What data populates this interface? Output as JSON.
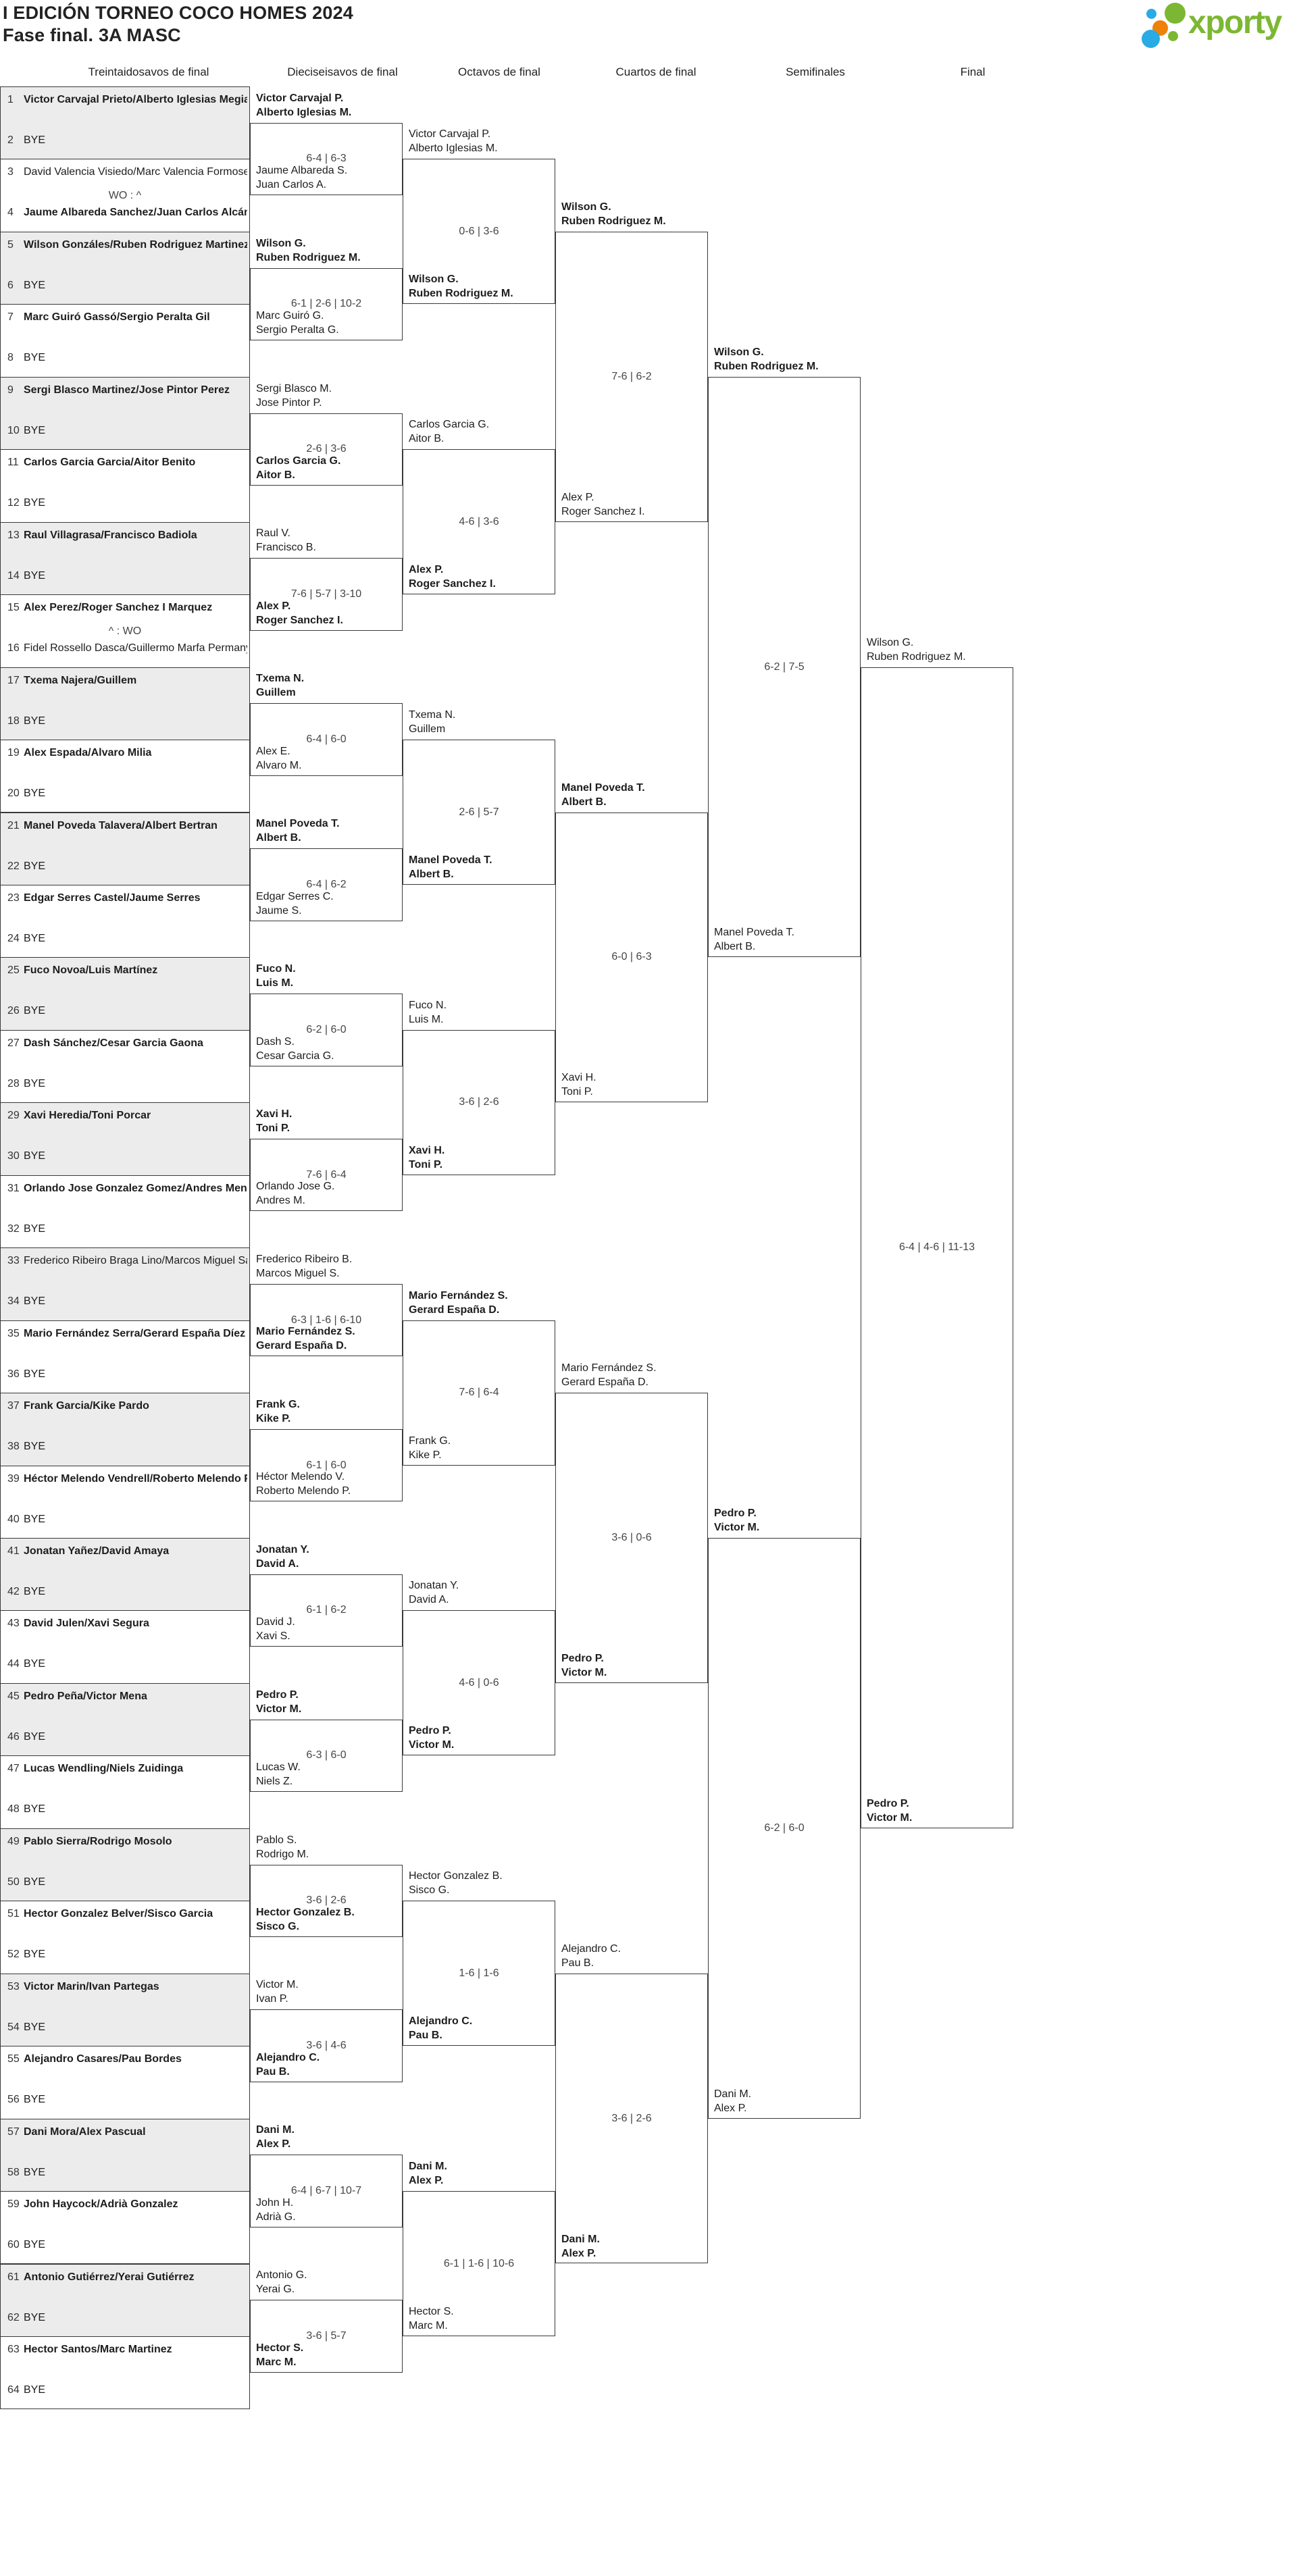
{
  "header": {
    "title": "I EDICIÓN TORNEO COCO HOMES 2024",
    "subtitle": "Fase final. 3A MASC"
  },
  "logo": {
    "brand": "xporty",
    "green": "#7cb733",
    "blue": "#2aabe4",
    "orange": "#ef8108"
  },
  "rounds": [
    {
      "label": "Treintaidosavos de final"
    },
    {
      "label": "Dieciseisavos de final"
    },
    {
      "label": "Octavos de final"
    },
    {
      "label": "Cuartos de final"
    },
    {
      "label": "Semifinales"
    },
    {
      "label": "Final"
    }
  ],
  "colors": {
    "shaded_match": "#ececec",
    "line": "#3a3a3a",
    "score_text": "#454545",
    "text": "#1d1d1d"
  },
  "bracket": {
    "round_of_64": [
      {
        "a_seed": 1,
        "a_name": "Victor Carvajal Prieto/Alberto Iglesias Megias",
        "a_bold": true,
        "b_seed": 2,
        "b_name": "BYE",
        "b_bold": false,
        "score": "",
        "shaded": true
      },
      {
        "a_seed": 3,
        "a_name": "David Valencia Visiedo/Marc Valencia Formoselle",
        "a_bold": false,
        "b_seed": 4,
        "b_name": "Jaume Albareda Sanchez/Juan Carlos Alcántara",
        "b_bold": true,
        "score": "WO : ^",
        "shaded": false
      },
      {
        "a_seed": 5,
        "a_name": "Wilson Gonzáles/Ruben Rodriguez Martinez",
        "a_bold": true,
        "b_seed": 6,
        "b_name": "BYE",
        "b_bold": false,
        "score": "",
        "shaded": true
      },
      {
        "a_seed": 7,
        "a_name": "Marc Guiró Gassó/Sergio Peralta Gil",
        "a_bold": true,
        "b_seed": 8,
        "b_name": "BYE",
        "b_bold": false,
        "score": "",
        "shaded": false
      },
      {
        "a_seed": 9,
        "a_name": "Sergi Blasco Martinez/Jose Pintor Perez",
        "a_bold": true,
        "b_seed": 10,
        "b_name": "BYE",
        "b_bold": false,
        "score": "",
        "shaded": true
      },
      {
        "a_seed": 11,
        "a_name": "Carlos Garcia Garcia/Aitor Benito",
        "a_bold": true,
        "b_seed": 12,
        "b_name": "BYE",
        "b_bold": false,
        "score": "",
        "shaded": false
      },
      {
        "a_seed": 13,
        "a_name": "Raul Villagrasa/Francisco Badiola",
        "a_bold": true,
        "b_seed": 14,
        "b_name": "BYE",
        "b_bold": false,
        "score": "",
        "shaded": true
      },
      {
        "a_seed": 15,
        "a_name": "Alex Perez/Roger Sanchez I Marquez",
        "a_bold": true,
        "b_seed": 16,
        "b_name": "Fidel Rossello Dasca/Guillermo Marfa Permanye",
        "b_bold": false,
        "score": "^ : WO",
        "shaded": false
      },
      {
        "a_seed": 17,
        "a_name": "Txema Najera/Guillem",
        "a_bold": true,
        "b_seed": 18,
        "b_name": "BYE",
        "b_bold": false,
        "score": "",
        "shaded": true
      },
      {
        "a_seed": 19,
        "a_name": "Alex Espada/Alvaro Milia",
        "a_bold": true,
        "b_seed": 20,
        "b_name": "BYE",
        "b_bold": false,
        "score": "",
        "shaded": false
      },
      {
        "a_seed": 21,
        "a_name": "Manel Poveda Talavera/Albert Bertran",
        "a_bold": true,
        "b_seed": 22,
        "b_name": "BYE",
        "b_bold": false,
        "score": "",
        "shaded": true
      },
      {
        "a_seed": 23,
        "a_name": "Edgar Serres Castel/Jaume Serres",
        "a_bold": true,
        "b_seed": 24,
        "b_name": "BYE",
        "b_bold": false,
        "score": "",
        "shaded": false
      },
      {
        "a_seed": 25,
        "a_name": "Fuco Novoa/Luis Martínez",
        "a_bold": true,
        "b_seed": 26,
        "b_name": "BYE",
        "b_bold": false,
        "score": "",
        "shaded": true
      },
      {
        "a_seed": 27,
        "a_name": "Dash Sánchez/Cesar Garcia Gaona",
        "a_bold": true,
        "b_seed": 28,
        "b_name": "BYE",
        "b_bold": false,
        "score": "",
        "shaded": false
      },
      {
        "a_seed": 29,
        "a_name": "Xavi Heredia/Toni Porcar",
        "a_bold": true,
        "b_seed": 30,
        "b_name": "BYE",
        "b_bold": false,
        "score": "",
        "shaded": true
      },
      {
        "a_seed": 31,
        "a_name": "Orlando Jose Gonzalez Gomez/Andres Mendoza",
        "a_bold": true,
        "b_seed": 32,
        "b_name": "BYE",
        "b_bold": false,
        "score": "",
        "shaded": false
      },
      {
        "a_seed": 33,
        "a_name": "Frederico Ribeiro Braga Lino/Marcos Miguel San",
        "a_bold": false,
        "b_seed": 34,
        "b_name": "BYE",
        "b_bold": false,
        "score": "",
        "shaded": true
      },
      {
        "a_seed": 35,
        "a_name": "Mario Fernández Serra/Gerard España Díez",
        "a_bold": true,
        "b_seed": 36,
        "b_name": "BYE",
        "b_bold": false,
        "score": "",
        "shaded": false
      },
      {
        "a_seed": 37,
        "a_name": "Frank Garcia/Kike Pardo",
        "a_bold": true,
        "b_seed": 38,
        "b_name": "BYE",
        "b_bold": false,
        "score": "",
        "shaded": true
      },
      {
        "a_seed": 39,
        "a_name": "Héctor Melendo Vendrell/Roberto Melendo Pala",
        "a_bold": true,
        "b_seed": 40,
        "b_name": "BYE",
        "b_bold": false,
        "score": "",
        "shaded": false
      },
      {
        "a_seed": 41,
        "a_name": "Jonatan Yañez/David Amaya",
        "a_bold": true,
        "b_seed": 42,
        "b_name": "BYE",
        "b_bold": false,
        "score": "",
        "shaded": true
      },
      {
        "a_seed": 43,
        "a_name": "David Julen/Xavi Segura",
        "a_bold": true,
        "b_seed": 44,
        "b_name": "BYE",
        "b_bold": false,
        "score": "",
        "shaded": false
      },
      {
        "a_seed": 45,
        "a_name": "Pedro Peña/Victor Mena",
        "a_bold": true,
        "b_seed": 46,
        "b_name": "BYE",
        "b_bold": false,
        "score": "",
        "shaded": true
      },
      {
        "a_seed": 47,
        "a_name": "Lucas Wendling/Niels Zuidinga",
        "a_bold": true,
        "b_seed": 48,
        "b_name": "BYE",
        "b_bold": false,
        "score": "",
        "shaded": false
      },
      {
        "a_seed": 49,
        "a_name": "Pablo Sierra/Rodrigo Mosolo",
        "a_bold": true,
        "b_seed": 50,
        "b_name": "BYE",
        "b_bold": false,
        "score": "",
        "shaded": true
      },
      {
        "a_seed": 51,
        "a_name": "Hector Gonzalez Belver/Sisco Garcia",
        "a_bold": true,
        "b_seed": 52,
        "b_name": "BYE",
        "b_bold": false,
        "score": "",
        "shaded": false
      },
      {
        "a_seed": 53,
        "a_name": "Victor Marin/Ivan Partegas",
        "a_bold": true,
        "b_seed": 54,
        "b_name": "BYE",
        "b_bold": false,
        "score": "",
        "shaded": true
      },
      {
        "a_seed": 55,
        "a_name": "Alejandro Casares/Pau Bordes",
        "a_bold": true,
        "b_seed": 56,
        "b_name": "BYE",
        "b_bold": false,
        "score": "",
        "shaded": false
      },
      {
        "a_seed": 57,
        "a_name": "Dani Mora/Alex Pascual",
        "a_bold": true,
        "b_seed": 58,
        "b_name": "BYE",
        "b_bold": false,
        "score": "",
        "shaded": true
      },
      {
        "a_seed": 59,
        "a_name": "John Haycock/Adrià Gonzalez",
        "a_bold": true,
        "b_seed": 60,
        "b_name": "BYE",
        "b_bold": false,
        "score": "",
        "shaded": false
      },
      {
        "a_seed": 61,
        "a_name": "Antonio Gutiérrez/Yerai Gutiérrez",
        "a_bold": true,
        "b_seed": 62,
        "b_name": "BYE",
        "b_bold": false,
        "score": "",
        "shaded": true
      },
      {
        "a_seed": 63,
        "a_name": "Hector Santos/Marc Martinez",
        "a_bold": true,
        "b_seed": 64,
        "b_name": "BYE",
        "b_bold": false,
        "score": "",
        "shaded": false
      }
    ],
    "round_of_32": [
      {
        "a": [
          "Victor Carvajal P.",
          "Alberto Iglesias M."
        ],
        "a_bold": true,
        "b": [
          "Jaume Albareda S.",
          "Juan Carlos A."
        ],
        "b_bold": false,
        "score": "6-4 | 6-3"
      },
      {
        "a": [
          "Wilson G.",
          "Ruben Rodriguez M."
        ],
        "a_bold": true,
        "b": [
          "Marc Guiró G.",
          "Sergio Peralta G."
        ],
        "b_bold": false,
        "score": "6-1 | 2-6 | 10-2"
      },
      {
        "a": [
          "Sergi Blasco M.",
          "Jose Pintor P."
        ],
        "a_bold": false,
        "b": [
          "Carlos Garcia G.",
          "Aitor B."
        ],
        "b_bold": true,
        "score": "2-6 | 3-6"
      },
      {
        "a": [
          "Raul V.",
          "Francisco B."
        ],
        "a_bold": false,
        "b": [
          "Alex P.",
          "Roger Sanchez I."
        ],
        "b_bold": true,
        "score": "7-6 | 5-7 | 3-10"
      },
      {
        "a": [
          "Txema N.",
          "Guillem"
        ],
        "a_bold": true,
        "b": [
          "Alex E.",
          "Alvaro M."
        ],
        "b_bold": false,
        "score": "6-4 | 6-0"
      },
      {
        "a": [
          "Manel Poveda T.",
          "Albert B."
        ],
        "a_bold": true,
        "b": [
          "Edgar Serres C.",
          "Jaume S."
        ],
        "b_bold": false,
        "score": "6-4 | 6-2"
      },
      {
        "a": [
          "Fuco N.",
          "Luis M."
        ],
        "a_bold": true,
        "b": [
          "Dash S.",
          "Cesar Garcia G."
        ],
        "b_bold": false,
        "score": "6-2 | 6-0"
      },
      {
        "a": [
          "Xavi H.",
          "Toni P."
        ],
        "a_bold": true,
        "b": [
          "Orlando Jose G.",
          "Andres M."
        ],
        "b_bold": false,
        "score": "7-6 | 6-4"
      },
      {
        "a": [
          "Frederico Ribeiro B.",
          "Marcos Miguel S."
        ],
        "a_bold": false,
        "b": [
          "Mario Fernández S.",
          "Gerard España D."
        ],
        "b_bold": true,
        "score": "6-3 | 1-6 | 6-10"
      },
      {
        "a": [
          "Frank G.",
          "Kike P."
        ],
        "a_bold": true,
        "b": [
          "Héctor Melendo V.",
          "Roberto Melendo P."
        ],
        "b_bold": false,
        "score": "6-1 | 6-0"
      },
      {
        "a": [
          "Jonatan Y.",
          "David A."
        ],
        "a_bold": true,
        "b": [
          "David J.",
          "Xavi S."
        ],
        "b_bold": false,
        "score": "6-1 | 6-2"
      },
      {
        "a": [
          "Pedro P.",
          "Victor M."
        ],
        "a_bold": true,
        "b": [
          "Lucas W.",
          "Niels Z."
        ],
        "b_bold": false,
        "score": "6-3 | 6-0"
      },
      {
        "a": [
          "Pablo S.",
          "Rodrigo M."
        ],
        "a_bold": false,
        "b": [
          "Hector Gonzalez B.",
          "Sisco G."
        ],
        "b_bold": true,
        "score": "3-6 | 2-6"
      },
      {
        "a": [
          "Victor M.",
          "Ivan P."
        ],
        "a_bold": false,
        "b": [
          "Alejandro C.",
          "Pau B."
        ],
        "b_bold": true,
        "score": "3-6 | 4-6"
      },
      {
        "a": [
          "Dani M.",
          "Alex P."
        ],
        "a_bold": true,
        "b": [
          "John H.",
          "Adrià G."
        ],
        "b_bold": false,
        "score": "6-4 | 6-7 | 10-7"
      },
      {
        "a": [
          "Antonio G.",
          "Yerai G."
        ],
        "a_bold": false,
        "b": [
          "Hector S.",
          "Marc M."
        ],
        "b_bold": true,
        "score": "3-6 | 5-7"
      }
    ],
    "octavos": [
      {
        "a": [
          "Victor Carvajal P.",
          "Alberto Iglesias M."
        ],
        "a_bold": false,
        "b": [
          "Wilson G.",
          "Ruben Rodriguez M."
        ],
        "b_bold": true,
        "score": "0-6 | 3-6"
      },
      {
        "a": [
          "Carlos Garcia G.",
          "Aitor B."
        ],
        "a_bold": false,
        "b": [
          "Alex P.",
          "Roger Sanchez I."
        ],
        "b_bold": true,
        "score": "4-6 | 3-6"
      },
      {
        "a": [
          "Txema N.",
          "Guillem"
        ],
        "a_bold": false,
        "b": [
          "Manel Poveda T.",
          "Albert B."
        ],
        "b_bold": true,
        "score": "2-6 | 5-7"
      },
      {
        "a": [
          "Fuco N.",
          "Luis M."
        ],
        "a_bold": false,
        "b": [
          "Xavi H.",
          "Toni P."
        ],
        "b_bold": true,
        "score": "3-6 | 2-6"
      },
      {
        "a": [
          "Mario Fernández S.",
          "Gerard España D."
        ],
        "a_bold": true,
        "b": [
          "Frank G.",
          "Kike P."
        ],
        "b_bold": false,
        "score": "7-6 | 6-4"
      },
      {
        "a": [
          "Jonatan Y.",
          "David A."
        ],
        "a_bold": false,
        "b": [
          "Pedro P.",
          "Victor M."
        ],
        "b_bold": true,
        "score": "4-6 | 0-6"
      },
      {
        "a": [
          "Hector Gonzalez B.",
          "Sisco G."
        ],
        "a_bold": false,
        "b": [
          "Alejandro C.",
          "Pau B."
        ],
        "b_bold": true,
        "score": "1-6 | 1-6"
      },
      {
        "a": [
          "Dani M.",
          "Alex P."
        ],
        "a_bold": true,
        "b": [
          "Hector S.",
          "Marc M."
        ],
        "b_bold": false,
        "score": "6-1 | 1-6 | 10-6"
      }
    ],
    "cuartos": [
      {
        "a": [
          "Wilson G.",
          "Ruben Rodriguez M."
        ],
        "a_bold": true,
        "b": [
          "Alex P.",
          "Roger Sanchez I."
        ],
        "b_bold": false,
        "score": "7-6 | 6-2"
      },
      {
        "a": [
          "Manel Poveda T.",
          "Albert B."
        ],
        "a_bold": true,
        "b": [
          "Xavi H.",
          "Toni P."
        ],
        "b_bold": false,
        "score": "6-0 | 6-3"
      },
      {
        "a": [
          "Mario Fernández S.",
          "Gerard España D."
        ],
        "a_bold": false,
        "b": [
          "Pedro P.",
          "Victor M."
        ],
        "b_bold": true,
        "score": "3-6 | 0-6"
      },
      {
        "a": [
          "Alejandro C.",
          "Pau B."
        ],
        "a_bold": false,
        "b": [
          "Dani M.",
          "Alex P."
        ],
        "b_bold": true,
        "score": "3-6 | 2-6"
      }
    ],
    "semifinales": [
      {
        "a": [
          "Wilson G.",
          "Ruben Rodriguez M."
        ],
        "a_bold": true,
        "b": [
          "Manel Poveda T.",
          "Albert B."
        ],
        "b_bold": false,
        "score": "6-2 | 7-5"
      },
      {
        "a": [
          "Pedro P.",
          "Victor M."
        ],
        "a_bold": true,
        "b": [
          "Dani M.",
          "Alex P."
        ],
        "b_bold": false,
        "score": "6-2 | 6-0"
      }
    ],
    "final": [
      {
        "a": [
          "Wilson G.",
          "Ruben Rodriguez M."
        ],
        "a_bold": false,
        "b": [
          "Pedro P.",
          "Victor M."
        ],
        "b_bold": true,
        "score": "6-4 | 4-6 | 11-13"
      }
    ]
  }
}
